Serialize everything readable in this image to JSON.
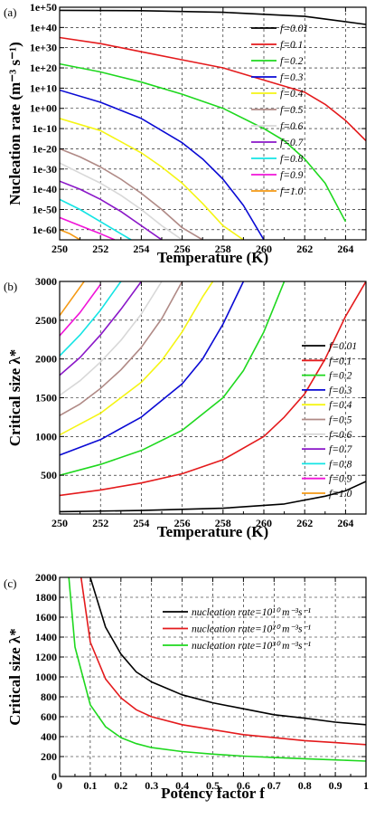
{
  "chart_data": [
    {
      "panel": "(a)",
      "type": "line",
      "xlabel": "Temperature (K)",
      "ylabel": "Nucleation rate (m⁻³ s⁻¹)",
      "xlim": [
        250,
        265
      ],
      "ylim_log10": [
        -65,
        50
      ],
      "y_scale": "log",
      "xticks": [
        250,
        252,
        254,
        256,
        258,
        260,
        262,
        264
      ],
      "xtick_labels": [
        "250",
        "252",
        "254",
        "256",
        "258",
        "260",
        "262",
        "264"
      ],
      "yticks_log10": [
        -60,
        -50,
        -40,
        -30,
        -20,
        -10,
        0,
        10,
        20,
        30,
        40,
        50
      ],
      "ytick_labels": [
        "1e-60",
        "1e-50",
        "1e-40",
        "1e-30",
        "1e-20",
        "1e-10",
        "1e+00",
        "1e+10",
        "1e+20",
        "1e+30",
        "1e+40",
        "1e+50"
      ],
      "grid": true,
      "legend_position": "upper-right",
      "series": [
        {
          "name": "f=0.01",
          "color": "#000000",
          "x": [
            250,
            254,
            258,
            262,
            265
          ],
          "y_log10": [
            48.5,
            48.3,
            47.5,
            45.5,
            41.5
          ]
        },
        {
          "name": "f=0.1",
          "color": "#e41a1c",
          "x": [
            250,
            252,
            254,
            256,
            258,
            260,
            262,
            263,
            264,
            265
          ],
          "y_log10": [
            35,
            32,
            28,
            24,
            20,
            14,
            8,
            2,
            -6,
            -16
          ]
        },
        {
          "name": "f=0.2",
          "color": "#1ed81e",
          "x": [
            250,
            252,
            254,
            256,
            258,
            260,
            261,
            262,
            263,
            264
          ],
          "y_log10": [
            22,
            18,
            13,
            7,
            0,
            -10,
            -16,
            -25,
            -37,
            -56
          ]
        },
        {
          "name": "f=0.3",
          "color": "#0a0ad4",
          "x": [
            250,
            252,
            254,
            256,
            257,
            258,
            259,
            260
          ],
          "y_log10": [
            9,
            3,
            -5,
            -17,
            -25,
            -35,
            -48,
            -65
          ]
        },
        {
          "name": "f=0.4",
          "color": "#f5f514",
          "x": [
            250,
            252,
            254,
            255,
            256,
            257,
            258,
            259
          ],
          "y_log10": [
            -5,
            -11,
            -22,
            -29,
            -37,
            -47,
            -58,
            -65
          ]
        },
        {
          "name": "f=0.5",
          "color": "#b08a86",
          "x": [
            250,
            251,
            252,
            253,
            254,
            255,
            256,
            257
          ],
          "y_log10": [
            -20,
            -24,
            -29,
            -35,
            -42,
            -50,
            -59,
            -65
          ]
        },
        {
          "name": "f=0.6",
          "color": "#d8d8d8",
          "x": [
            250,
            251,
            252,
            253,
            254,
            255,
            256
          ],
          "y_log10": [
            -27,
            -32,
            -37,
            -43,
            -50,
            -58,
            -65
          ]
        },
        {
          "name": "f=0.7",
          "color": "#8a16c8",
          "x": [
            250,
            251,
            252,
            253,
            254,
            255
          ],
          "y_log10": [
            -36,
            -40,
            -45,
            -51,
            -58,
            -65
          ]
        },
        {
          "name": "f=0.8",
          "color": "#14e4e4",
          "x": [
            250,
            251,
            252,
            253,
            253.5
          ],
          "y_log10": [
            -45,
            -50,
            -56,
            -62,
            -65
          ]
        },
        {
          "name": "f=0.9",
          "color": "#f014d8",
          "x": [
            250,
            251,
            252,
            252.7
          ],
          "y_log10": [
            -54,
            -58,
            -62,
            -65
          ]
        },
        {
          "name": "f=1.0",
          "color": "#f59a14",
          "x": [
            250,
            250.5,
            251
          ],
          "y_log10": [
            -60,
            -62,
            -65
          ]
        }
      ]
    },
    {
      "panel": "(b)",
      "type": "line",
      "xlabel": "Temperature (K)",
      "ylabel": "Critical size λ*",
      "xlim": [
        250,
        265
      ],
      "ylim": [
        0,
        3000
      ],
      "xticks": [
        250,
        252,
        254,
        256,
        258,
        260,
        262,
        264
      ],
      "xtick_labels": [
        "250",
        "252",
        "254",
        "256",
        "258",
        "260",
        "262",
        "264"
      ],
      "yticks": [
        500,
        1000,
        1500,
        2000,
        2500,
        3000
      ],
      "ytick_labels": [
        "500",
        "1000",
        "1500",
        "2000",
        "2500",
        "3000"
      ],
      "grid": true,
      "legend_position": "right",
      "series": [
        {
          "name": "f=0.01",
          "color": "#000000",
          "x": [
            250,
            254,
            258,
            261,
            263,
            264,
            265
          ],
          "y": [
            30,
            45,
            75,
            130,
            230,
            300,
            420
          ]
        },
        {
          "name": "f=0.1",
          "color": "#e41a1c",
          "x": [
            250,
            252,
            254,
            256,
            258,
            260,
            261,
            262,
            263,
            264,
            265
          ],
          "y": [
            240,
            310,
            400,
            520,
            700,
            1000,
            1250,
            1550,
            2000,
            2550,
            3000
          ]
        },
        {
          "name": "f=0.2",
          "color": "#1ed81e",
          "x": [
            250,
            252,
            254,
            256,
            258,
            259,
            260,
            261
          ],
          "y": [
            500,
            640,
            820,
            1080,
            1500,
            1850,
            2350,
            3000
          ]
        },
        {
          "name": "f=0.3",
          "color": "#0a0ad4",
          "x": [
            250,
            252,
            254,
            256,
            257,
            258,
            259
          ],
          "y": [
            760,
            960,
            1250,
            1680,
            2000,
            2450,
            3000
          ]
        },
        {
          "name": "f=0.4",
          "color": "#f5f514",
          "x": [
            250,
            252,
            254,
            255,
            256,
            257,
            257.5
          ],
          "y": [
            1020,
            1300,
            1700,
            1980,
            2350,
            2800,
            3000
          ]
        },
        {
          "name": "f=0.5",
          "color": "#b08a86",
          "x": [
            250,
            251,
            252,
            253,
            254,
            255,
            256
          ],
          "y": [
            1270,
            1420,
            1620,
            1860,
            2150,
            2520,
            3000
          ]
        },
        {
          "name": "f=0.6",
          "color": "#d8d8d8",
          "x": [
            250,
            251,
            252,
            253,
            254,
            255
          ],
          "y": [
            1530,
            1720,
            1960,
            2240,
            2580,
            3000
          ]
        },
        {
          "name": "f=0.7",
          "color": "#8a16c8",
          "x": [
            250,
            251,
            252,
            253,
            254
          ],
          "y": [
            1790,
            2020,
            2310,
            2640,
            3000
          ]
        },
        {
          "name": "f=0.8",
          "color": "#14e4e4",
          "x": [
            250,
            251,
            252,
            253
          ],
          "y": [
            2040,
            2310,
            2630,
            3000
          ]
        },
        {
          "name": "f=0.9",
          "color": "#f014d8",
          "x": [
            250,
            251,
            252
          ],
          "y": [
            2300,
            2600,
            2960
          ]
        },
        {
          "name": "f=1.0",
          "color": "#f59a14",
          "x": [
            250,
            250.6,
            251.2
          ],
          "y": [
            2560,
            2780,
            3000
          ]
        }
      ]
    },
    {
      "panel": "(c)",
      "type": "line",
      "xlabel": "Potency factor f",
      "ylabel": "Critical size λ*",
      "xlim": [
        0,
        1
      ],
      "ylim": [
        0,
        2000
      ],
      "xticks": [
        0,
        0.1,
        0.2,
        0.3,
        0.4,
        0.5,
        0.6,
        0.7,
        0.8,
        0.9,
        1
      ],
      "xtick_labels": [
        "0",
        "0.1",
        "0.2",
        "0.3",
        "0.4",
        "0.5",
        "0.6",
        "0.7",
        "0.8",
        "0.9",
        "1"
      ],
      "yticks": [
        0,
        200,
        400,
        600,
        800,
        1000,
        1200,
        1400,
        1600,
        1800,
        2000
      ],
      "ytick_labels": [
        "0",
        "200",
        "400",
        "600",
        "800",
        "1000",
        "1200",
        "1400",
        "1600",
        "1800",
        "2000"
      ],
      "grid": true,
      "legend_position": "upper-right",
      "series": [
        {
          "name": "nucleation rate=10¹⁰ m⁻³s⁻¹",
          "color": "#000000",
          "x": [
            0.1,
            0.15,
            0.2,
            0.25,
            0.3,
            0.4,
            0.5,
            0.6,
            0.7,
            0.8,
            0.9,
            1.0
          ],
          "y": [
            2000,
            1500,
            1230,
            1050,
            950,
            820,
            740,
            680,
            620,
            585,
            545,
            520
          ]
        },
        {
          "name": "nucleation rate=10²⁰ m⁻³s⁻¹",
          "color": "#e41a1c",
          "x": [
            0.07,
            0.1,
            0.15,
            0.2,
            0.25,
            0.3,
            0.4,
            0.5,
            0.6,
            0.7,
            0.8,
            0.9,
            1.0
          ],
          "y": [
            2000,
            1350,
            980,
            790,
            670,
            600,
            520,
            470,
            420,
            390,
            360,
            340,
            320
          ]
        },
        {
          "name": "nucleation rate=10³⁰ m⁻³s⁻¹",
          "color": "#1ed81e",
          "x": [
            0.03,
            0.05,
            0.1,
            0.15,
            0.2,
            0.25,
            0.3,
            0.4,
            0.5,
            0.6,
            0.7,
            0.8,
            0.9,
            1.0
          ],
          "y": [
            2000,
            1300,
            720,
            500,
            390,
            330,
            290,
            250,
            225,
            205,
            190,
            178,
            166,
            155
          ]
        }
      ]
    }
  ]
}
